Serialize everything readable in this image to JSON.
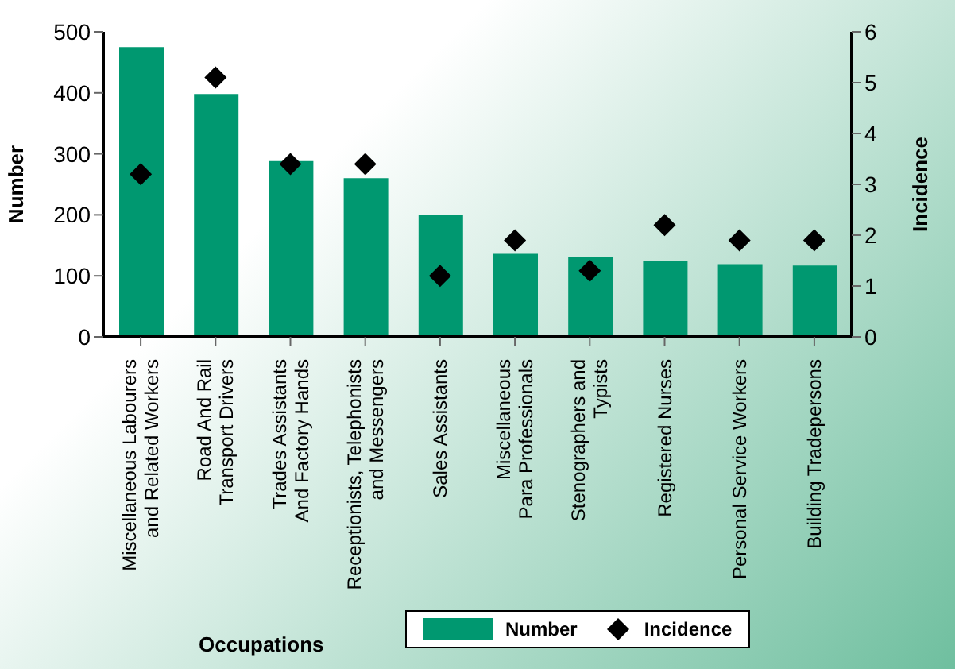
{
  "chart_data": {
    "type": "bar",
    "xlabel": "Occupations",
    "ylabel": "Number",
    "y2label": "Incidence",
    "categories": [
      "Miscellaneous Labourers\nand Related Workers",
      "Road And Rail\nTransport Drivers",
      "Trades Assistants\nAnd Factory Hands",
      "Receptionists, Telephonists\nand Messengers",
      "Sales Assistants",
      "Miscellaneous\nPara Professionals",
      "Stenographers and\nTypists",
      "Registered Nurses",
      "Personal Service Workers",
      "Building Tradepersons"
    ],
    "series": [
      {
        "name": "Number",
        "color": "#009870",
        "values": [
          475,
          398,
          288,
          260,
          200,
          136,
          131,
          124,
          119,
          117
        ]
      },
      {
        "name": "Incidence",
        "type": "scatter",
        "axis": "y2",
        "marker": "diamond",
        "color": "#000000",
        "values": [
          3.2,
          5.1,
          3.4,
          3.4,
          1.2,
          1.9,
          1.3,
          2.2,
          1.9,
          1.9
        ]
      }
    ],
    "ylim": [
      0,
      500
    ],
    "yticks": [
      0,
      100,
      200,
      300,
      400,
      500
    ],
    "y2lim": [
      0,
      6
    ],
    "y2ticks": [
      0,
      1,
      2,
      3,
      4,
      5,
      6
    ],
    "legend": "bottom"
  }
}
